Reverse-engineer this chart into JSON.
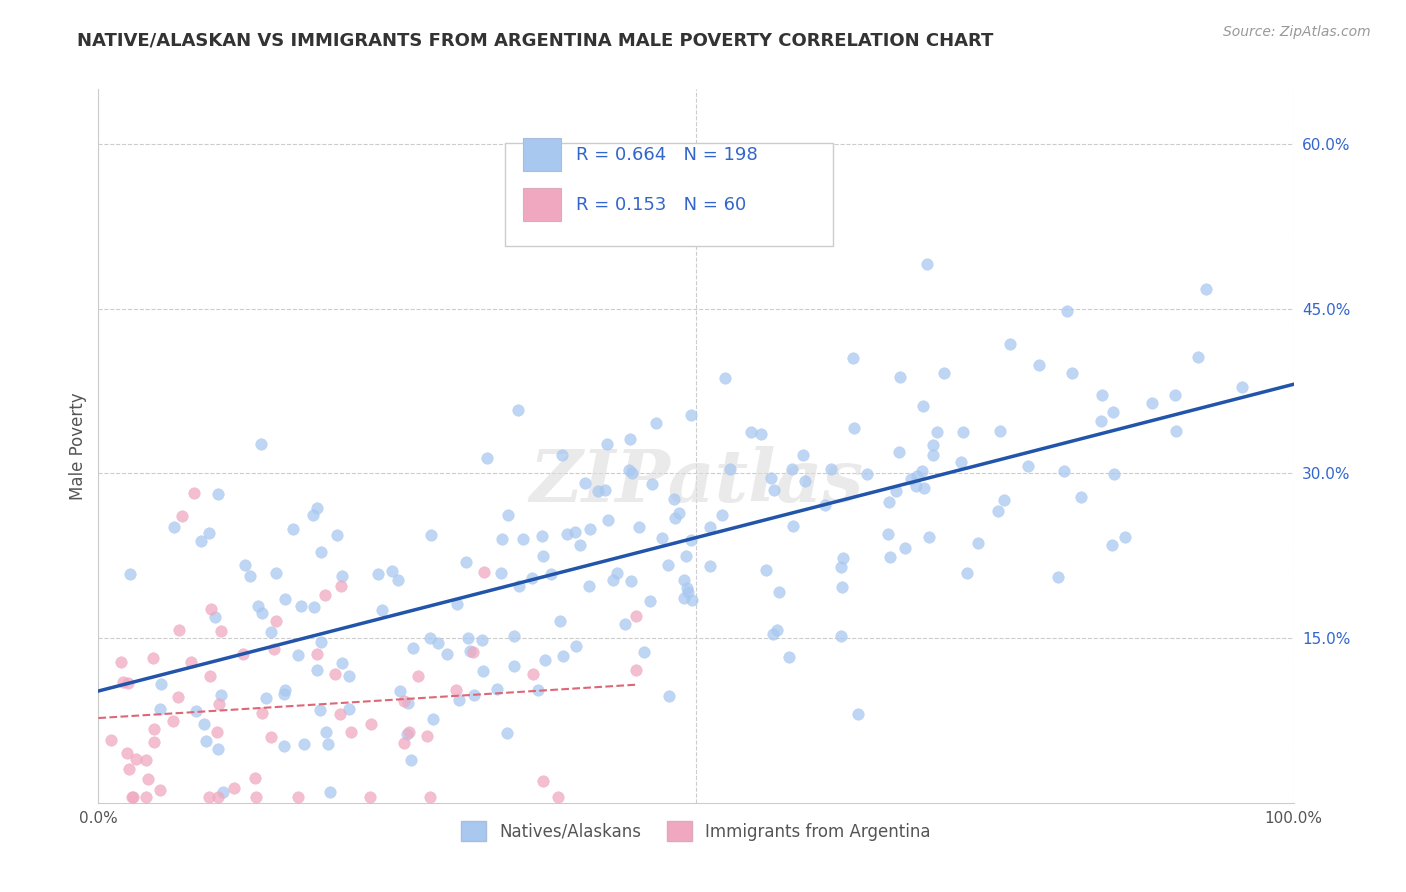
{
  "title": "NATIVE/ALASKAN VS IMMIGRANTS FROM ARGENTINA MALE POVERTY CORRELATION CHART",
  "source": "Source: ZipAtlas.com",
  "ylabel": "Male Poverty",
  "xlim": [
    0.0,
    1.0
  ],
  "ylim": [
    0.0,
    0.65
  ],
  "ytick_positions": [
    0.15,
    0.3,
    0.45,
    0.6
  ],
  "ytick_labels": [
    "15.0%",
    "30.0%",
    "45.0%",
    "60.0%"
  ],
  "legend_labels": [
    "Natives/Alaskans",
    "Immigrants from Argentina"
  ],
  "R_native": 0.664,
  "N_native": 198,
  "R_arg": 0.153,
  "N_arg": 60,
  "color_native": "#a8c8f0",
  "color_arg": "#f0a8c0",
  "color_native_line": "#2255aa",
  "color_arg_line": "#dd6677",
  "watermark": "ZIPatlas",
  "background_color": "#ffffff",
  "grid_color": "#cccccc",
  "title_color": "#333333",
  "source_color": "#999999",
  "legend_text_color": "#3366cc",
  "seed": 12345
}
